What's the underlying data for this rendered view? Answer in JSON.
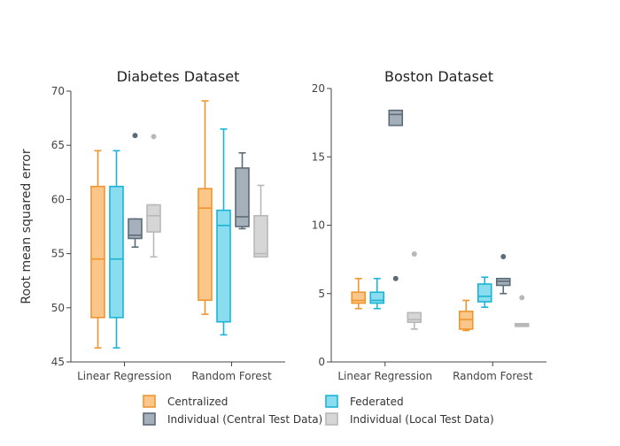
{
  "chart_data": [
    {
      "type": "box",
      "title": "Diabetes Dataset",
      "ylabel": "Root mean squared error",
      "ylim": [
        45,
        70
      ],
      "yticks": [
        45,
        50,
        55,
        60,
        65,
        70
      ],
      "categories": [
        "Linear Regression",
        "Random Forest"
      ],
      "series": [
        {
          "name": "Centralized",
          "boxes": [
            {
              "min": 46.3,
              "q1": 49.1,
              "median": 54.5,
              "q3": 61.2,
              "max": 64.5,
              "outliers": []
            },
            {
              "min": 49.4,
              "q1": 50.7,
              "median": 59.2,
              "q3": 61.0,
              "max": 69.1,
              "outliers": []
            }
          ]
        },
        {
          "name": "Federated",
          "boxes": [
            {
              "min": 46.3,
              "q1": 49.1,
              "median": 54.5,
              "q3": 61.2,
              "max": 64.5,
              "outliers": []
            },
            {
              "min": 47.5,
              "q1": 48.7,
              "median": 57.6,
              "q3": 59.0,
              "max": 66.5,
              "outliers": []
            }
          ]
        },
        {
          "name": "Individual (Central Test Data)",
          "boxes": [
            {
              "min": 55.6,
              "q1": 56.4,
              "median": 56.7,
              "q3": 58.2,
              "max": 58.2,
              "outliers": [
                65.9
              ]
            },
            {
              "min": 57.3,
              "q1": 57.5,
              "median": 58.4,
              "q3": 62.9,
              "max": 64.3,
              "outliers": []
            }
          ]
        },
        {
          "name": "Individual (Local Test Data)",
          "boxes": [
            {
              "min": 54.7,
              "q1": 57.0,
              "median": 58.5,
              "q3": 59.5,
              "max": 59.5,
              "outliers": [
                65.8
              ]
            },
            {
              "min": 54.7,
              "q1": 54.7,
              "median": 55.0,
              "q3": 58.5,
              "max": 61.3,
              "outliers": []
            }
          ]
        }
      ]
    },
    {
      "type": "box",
      "title": "Boston Dataset",
      "ylabel": "",
      "ylim": [
        0,
        20
      ],
      "yticks": [
        0,
        5,
        10,
        15,
        20
      ],
      "categories": [
        "Linear Regression",
        "Random Forest"
      ],
      "series": [
        {
          "name": "Centralized",
          "boxes": [
            {
              "min": 3.9,
              "q1": 4.3,
              "median": 4.5,
              "q3": 5.1,
              "max": 6.1,
              "outliers": []
            },
            {
              "min": 2.3,
              "q1": 2.4,
              "median": 3.1,
              "q3": 3.7,
              "max": 4.5,
              "outliers": []
            }
          ]
        },
        {
          "name": "Federated",
          "boxes": [
            {
              "min": 3.9,
              "q1": 4.3,
              "median": 4.5,
              "q3": 5.1,
              "max": 6.1,
              "outliers": []
            },
            {
              "min": 4.0,
              "q1": 4.4,
              "median": 4.8,
              "q3": 5.7,
              "max": 6.2,
              "outliers": []
            }
          ]
        },
        {
          "name": "Individual (Central Test Data)",
          "boxes": [
            {
              "min": 17.3,
              "q1": 17.3,
              "median": 18.1,
              "q3": 18.4,
              "max": 18.4,
              "outliers": [
                6.1
              ]
            },
            {
              "min": 5.0,
              "q1": 5.6,
              "median": 5.9,
              "q3": 6.1,
              "max": 6.1,
              "outliers": [
                7.7
              ]
            }
          ]
        },
        {
          "name": "Individual (Local Test Data)",
          "boxes": [
            {
              "min": 2.4,
              "q1": 2.9,
              "median": 3.1,
              "q3": 3.6,
              "max": 3.6,
              "outliers": [
                7.9
              ]
            },
            {
              "min": 2.6,
              "q1": 2.6,
              "median": 2.7,
              "q3": 2.8,
              "max": 2.8,
              "outliers": [
                4.7
              ]
            }
          ]
        }
      ]
    }
  ],
  "legend": {
    "placement": "bottom",
    "items": [
      {
        "label": "Centralized",
        "color": "#f0962f",
        "fill": "#fbc68a"
      },
      {
        "label": "Federated",
        "color": "#1cb4d5",
        "fill": "#8adcef"
      },
      {
        "label": "Individual (Central Test Data)",
        "color": "#5c6b78",
        "fill": "#a6b0ba"
      },
      {
        "label": "Individual (Local Test Data)",
        "color": "#b8b8b8",
        "fill": "#d6d6d6"
      }
    ]
  },
  "colors": {
    "Centralized": {
      "line": "#f0962f",
      "fill": "#fbc68a"
    },
    "Federated": {
      "line": "#1cb4d5",
      "fill": "#8adcef"
    },
    "Individual (Central Test Data)": {
      "line": "#5c6b78",
      "fill": "#a6b0ba"
    },
    "Individual (Local Test Data)": {
      "line": "#b8b8b8",
      "fill": "#d6d6d6"
    }
  }
}
